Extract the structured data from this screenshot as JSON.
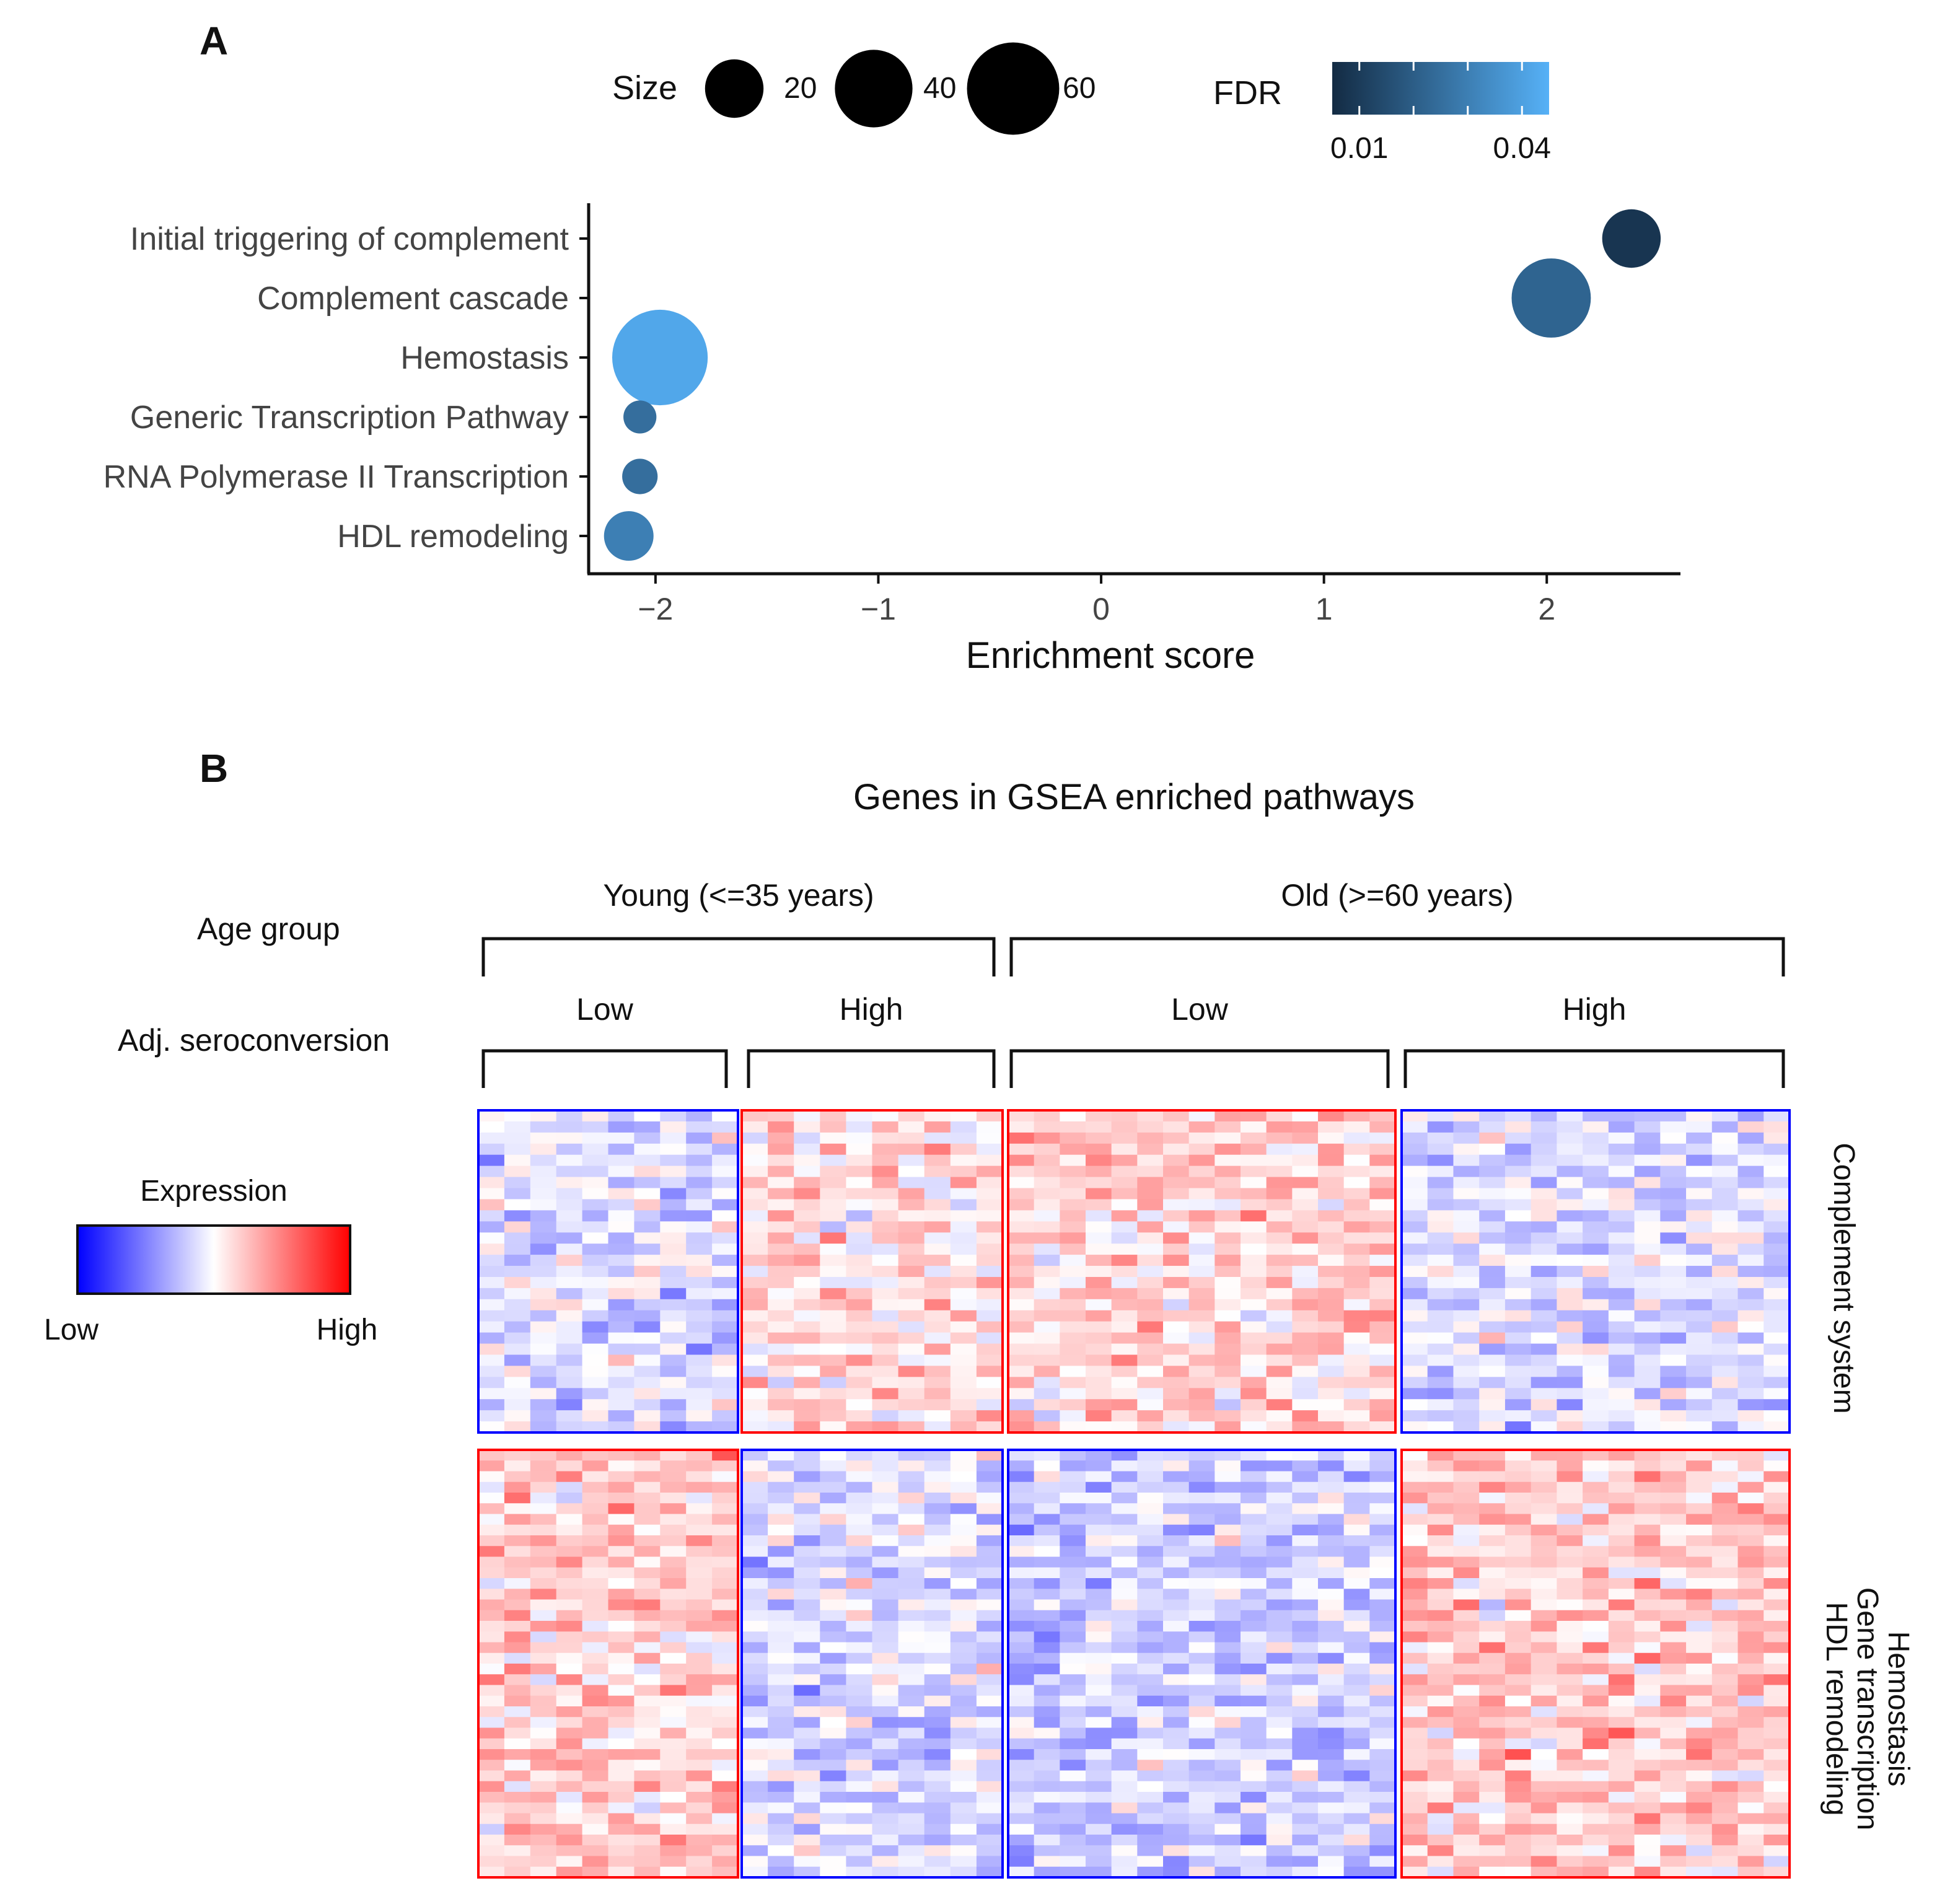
{
  "panels": {
    "a_label": "A",
    "b_label": "B"
  },
  "chart_data": [
    {
      "type": "scatter",
      "subtype": "bubble-dot-plot",
      "xlabel": "Enrichment score",
      "xlim": [
        -2.3,
        2.6
      ],
      "xticks": [
        -2,
        -1,
        0,
        1,
        2
      ],
      "xtick_labels": [
        "−2",
        "−1",
        "0",
        "1",
        "2"
      ],
      "categories": [
        "Initial triggering of complement",
        "Complement cascade",
        "Hemostasis",
        "Generic Transcription Pathway",
        "RNA Polymerase II Transcription",
        "HDL remodeling"
      ],
      "points": [
        {
          "pathway": "Initial triggering of complement",
          "score": 2.38,
          "size": 20,
          "fdr": 0.008
        },
        {
          "pathway": "Complement cascade",
          "score": 2.02,
          "size": 42,
          "fdr": 0.022
        },
        {
          "pathway": "Hemostasis",
          "score": -1.98,
          "size": 65,
          "fdr": 0.042
        },
        {
          "pathway": "Generic Transcription Pathway",
          "score": -2.07,
          "size": 4,
          "fdr": 0.025
        },
        {
          "pathway": "RNA Polymerase II Transcription",
          "score": -2.07,
          "size": 5,
          "fdr": 0.025
        },
        {
          "pathway": "HDL remodeling",
          "score": -2.12,
          "size": 13,
          "fdr": 0.03
        }
      ],
      "size_legend": {
        "title": "Size",
        "values": [
          20,
          40,
          60
        ]
      },
      "color_legend": {
        "title": "FDR",
        "range": [
          0.005,
          0.045
        ],
        "ticks": [
          0.01,
          0.04
        ],
        "tick_labels": [
          "0.01",
          "0.04"
        ],
        "color_low": "#132B43",
        "color_high": "#56B1F7"
      },
      "grid": false
    },
    {
      "type": "heatmap",
      "title": "Genes in GSEA enriched pathways",
      "row_annotations": [
        "Age group",
        "Adj. seroconversion"
      ],
      "age_groups": [
        {
          "label": "Young (<=35 years)",
          "span": [
            0,
            1
          ]
        },
        {
          "label": "Old (>=60 years)",
          "span": [
            2,
            3
          ]
        }
      ],
      "column_groups": [
        {
          "label": "Low",
          "age": "Young (<=35 years)",
          "columns": 10
        },
        {
          "label": "High",
          "age": "Young (<=35 years)",
          "columns": 10
        },
        {
          "label": "Low",
          "age": "Old (>=60 years)",
          "columns": 15
        },
        {
          "label": "High",
          "age": "Old (>=60 years)",
          "columns": 15
        }
      ],
      "row_groups": [
        {
          "labels": [
            "Complement system"
          ],
          "rows": 29
        },
        {
          "labels": [
            "Hemostasis",
            "Gene transcription",
            "HDL remodeling"
          ],
          "rows": 40
        }
      ],
      "block_borders": [
        [
          "#0000ff",
          "#ff0000",
          "#ff0000",
          "#0000ff"
        ],
        [
          "#ff0000",
          "#0000ff",
          "#0000ff",
          "#ff0000"
        ]
      ],
      "block_bias": [
        [
          -0.12,
          0.12,
          0.16,
          -0.12
        ],
        [
          0.2,
          -0.14,
          -0.18,
          0.2
        ]
      ],
      "legend": {
        "title": "Expression",
        "low_label": "Low",
        "high_label": "High",
        "color_low": "#0000ff",
        "color_mid": "#ffffff",
        "color_high": "#ff0000"
      }
    }
  ]
}
